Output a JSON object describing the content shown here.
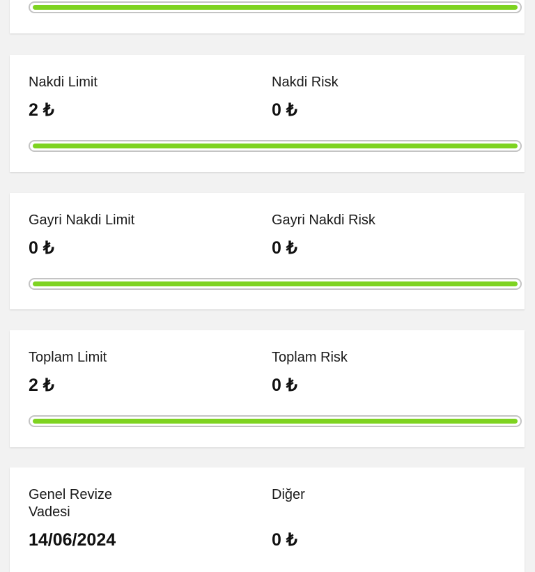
{
  "colors": {
    "progress": "#7ed321",
    "track_border": "#c4c4c4"
  },
  "cards": [
    {
      "progress_pct": 100
    },
    {
      "left_label": "Nakdi Limit",
      "left_value": "2 ₺",
      "right_label": "Nakdi Risk",
      "right_value": "0 ₺",
      "progress_pct": 100
    },
    {
      "left_label": "Gayri Nakdi Limit",
      "left_value": "0 ₺",
      "right_label": "Gayri Nakdi Risk",
      "right_value": "0 ₺",
      "progress_pct": 100
    },
    {
      "left_label": "Toplam Limit",
      "left_value": "2 ₺",
      "right_label": "Toplam Risk",
      "right_value": "0 ₺",
      "progress_pct": 100
    },
    {
      "left_label": "Genel Revize Vadesi",
      "left_value": "14/06/2024",
      "right_label": "Diğer",
      "right_value": "0 ₺"
    }
  ]
}
